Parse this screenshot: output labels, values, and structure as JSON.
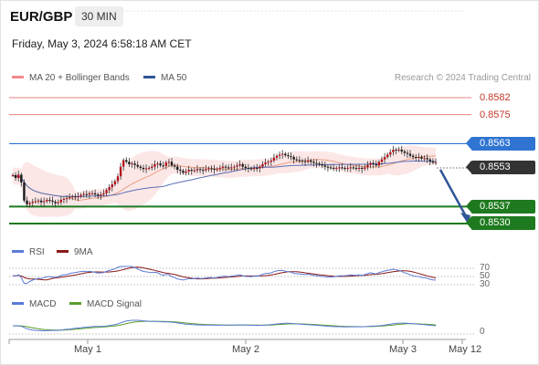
{
  "header": {
    "symbol": "EUR/GBP",
    "timeframe": "30 MIN",
    "datetime": "Friday, May 3, 2024 6:58:18 AM CET"
  },
  "legend_main": [
    {
      "label": "MA 20 + Bollinger Bands",
      "color": "#f08a8a"
    },
    {
      "label": "MA 50",
      "color": "#2f5597"
    }
  ],
  "credit": "Research © 2024 Trading Central",
  "levels": [
    {
      "label": "0.8582",
      "value": 0.8582,
      "style": "plain",
      "color": "#d9534f"
    },
    {
      "label": "0.8575",
      "value": 0.8575,
      "style": "plain",
      "color": "#d9534f"
    },
    {
      "label": "0.8563",
      "value": 0.8563,
      "style": "tag",
      "color": "#2f74d0"
    },
    {
      "label": "0.8553",
      "value": 0.8553,
      "style": "tag",
      "color": "#333333"
    },
    {
      "label": "0.8537",
      "value": 0.8537,
      "style": "tag",
      "color": "#1e7a1e"
    },
    {
      "label": "0.8530",
      "value": 0.853,
      "style": "tag",
      "color": "#1e7a1e"
    }
  ],
  "legend_rsi": [
    {
      "label": "RSI",
      "color": "#5b7bd5"
    },
    {
      "label": "9MA",
      "color": "#8b1a1a"
    }
  ],
  "rsi_levels": [
    "70",
    "50",
    "30"
  ],
  "legend_macd": [
    {
      "label": "MACD",
      "color": "#5b7bd5"
    },
    {
      "label": "MACD Signal",
      "color": "#5a9e2a"
    }
  ],
  "macd_zero_label": "0",
  "x_ticks": [
    "May 1",
    "May 2",
    "May 3",
    "May 12"
  ],
  "chart_data": {
    "type": "candlestick",
    "symbol": "EUR/GBP",
    "interval": "30 MIN",
    "ylim": [
      0.8525,
      0.8585
    ],
    "forecast_arrow": {
      "from": 0.8553,
      "to": 0.853
    },
    "x": [
      0,
      1,
      2,
      3,
      4,
      5,
      6,
      7,
      8,
      9,
      10,
      11,
      12,
      13,
      14,
      15,
      16,
      17,
      18,
      19,
      20,
      21,
      22,
      23,
      24,
      25,
      26,
      27,
      28,
      29,
      30,
      31,
      32,
      33,
      34,
      35,
      36,
      37,
      38,
      39,
      40,
      41,
      42,
      43,
      44,
      45,
      46,
      47,
      48,
      49,
      50,
      51,
      52,
      53,
      54,
      55,
      56,
      57,
      58,
      59,
      60,
      61,
      62,
      63,
      64,
      65,
      66,
      67,
      68,
      69,
      70,
      71,
      72,
      73,
      74,
      75,
      76,
      77,
      78,
      79,
      80,
      81,
      82,
      83,
      84,
      85,
      86,
      87,
      88,
      89,
      90,
      91,
      92,
      93,
      94,
      95,
      96,
      97,
      98,
      99,
      100,
      101,
      102,
      103,
      104,
      105,
      106,
      107,
      108,
      109,
      110,
      111,
      112,
      113,
      114,
      115,
      116,
      117,
      118,
      119,
      120,
      121,
      122,
      123,
      124,
      125,
      126,
      127,
      128,
      129,
      130,
      131,
      132,
      133,
      134,
      135,
      136,
      137,
      138,
      139,
      140,
      141,
      142,
      143,
      144,
      145,
      146,
      147,
      148,
      149
    ],
    "close": [
      0.855,
      0.85488,
      0.85502,
      0.8547,
      0.85395,
      0.8538,
      0.85385,
      0.8539,
      0.85392,
      0.85395,
      0.85388,
      0.85392,
      0.85398,
      0.85395,
      0.8539,
      0.85384,
      0.85388,
      0.85398,
      0.85402,
      0.85405,
      0.85408,
      0.85412,
      0.8541,
      0.85412,
      0.85418,
      0.85422,
      0.8542,
      0.85425,
      0.85425,
      0.8542,
      0.85415,
      0.8542,
      0.85425,
      0.85438,
      0.8545,
      0.85462,
      0.85475,
      0.85495,
      0.85535,
      0.85562,
      0.85555,
      0.85545,
      0.85548,
      0.85542,
      0.85535,
      0.8553,
      0.85525,
      0.85528,
      0.8553,
      0.85535,
      0.85545,
      0.85548,
      0.8554,
      0.85538,
      0.85552,
      0.85555,
      0.8554,
      0.85535,
      0.85522,
      0.85518,
      0.8551,
      0.85515,
      0.85522,
      0.85518,
      0.8552,
      0.85525,
      0.85522,
      0.8552,
      0.85525,
      0.85528,
      0.85526,
      0.85522,
      0.85525,
      0.8553,
      0.85535,
      0.85532,
      0.85528,
      0.85532,
      0.85535,
      0.8554,
      0.85545,
      0.85535,
      0.8553,
      0.85528,
      0.85525,
      0.8553,
      0.85528,
      0.85535,
      0.85545,
      0.85552,
      0.85555,
      0.8556,
      0.85572,
      0.8558,
      0.85585,
      0.85588,
      0.85582,
      0.85578,
      0.85575,
      0.85565,
      0.85562,
      0.8556,
      0.85558,
      0.85555,
      0.8556,
      0.85555,
      0.8555,
      0.85548,
      0.85545,
      0.8554,
      0.85535,
      0.85532,
      0.8553,
      0.85528,
      0.8553,
      0.85532,
      0.8553,
      0.85528,
      0.8553,
      0.85532,
      0.8553,
      0.85528,
      0.8553,
      0.85526,
      0.85532,
      0.85542,
      0.8555,
      0.85545,
      0.8554,
      0.85555,
      0.85565,
      0.85575,
      0.85585,
      0.85595,
      0.85605,
      0.85603,
      0.85605,
      0.85598,
      0.85592,
      0.85588,
      0.8558,
      0.85575,
      0.85572,
      0.85575,
      0.85568,
      0.8557,
      0.85565,
      0.85558,
      0.85552,
      0.85553
    ]
  }
}
